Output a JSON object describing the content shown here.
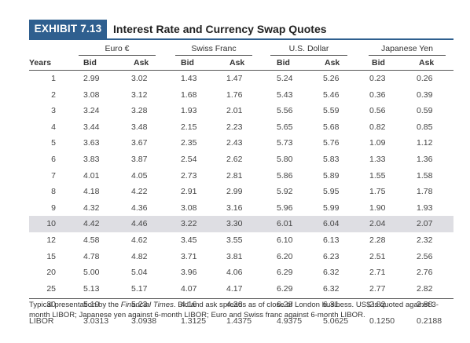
{
  "exhibit": {
    "tag": "EXHIBIT 7.13",
    "title": "Interest Rate and Currency Swap Quotes"
  },
  "groups": [
    "Euro €",
    "Swiss Franc",
    "U.S. Dollar",
    "Japanese Yen"
  ],
  "columns": {
    "years": "Years",
    "bid": "Bid",
    "ask": "Ask"
  },
  "rows": [
    {
      "years": "1",
      "cells": [
        "2.99",
        "3.02",
        "1.43",
        "1.47",
        "5.24",
        "5.26",
        "0.23",
        "0.26"
      ]
    },
    {
      "years": "2",
      "cells": [
        "3.08",
        "3.12",
        "1.68",
        "1.76",
        "5.43",
        "5.46",
        "0.36",
        "0.39"
      ]
    },
    {
      "years": "3",
      "cells": [
        "3.24",
        "3.28",
        "1.93",
        "2.01",
        "5.56",
        "5.59",
        "0.56",
        "0.59"
      ]
    },
    {
      "years": "4",
      "cells": [
        "3.44",
        "3.48",
        "2.15",
        "2.23",
        "5.65",
        "5.68",
        "0.82",
        "0.85"
      ]
    },
    {
      "years": "5",
      "cells": [
        "3.63",
        "3.67",
        "2.35",
        "2.43",
        "5.73",
        "5.76",
        "1.09",
        "1.12"
      ]
    },
    {
      "years": "6",
      "cells": [
        "3.83",
        "3.87",
        "2.54",
        "2.62",
        "5.80",
        "5.83",
        "1.33",
        "1.36"
      ]
    },
    {
      "years": "7",
      "cells": [
        "4.01",
        "4.05",
        "2.73",
        "2.81",
        "5.86",
        "5.89",
        "1.55",
        "1.58"
      ]
    },
    {
      "years": "8",
      "cells": [
        "4.18",
        "4.22",
        "2.91",
        "2.99",
        "5.92",
        "5.95",
        "1.75",
        "1.78"
      ]
    },
    {
      "years": "9",
      "cells": [
        "4.32",
        "4.36",
        "3.08",
        "3.16",
        "5.96",
        "5.99",
        "1.90",
        "1.93"
      ]
    },
    {
      "years": "10",
      "cells": [
        "4.42",
        "4.46",
        "3.22",
        "3.30",
        "6.01",
        "6.04",
        "2.04",
        "2.07"
      ],
      "highlight": true
    },
    {
      "years": "12",
      "cells": [
        "4.58",
        "4.62",
        "3.45",
        "3.55",
        "6.10",
        "6.13",
        "2.28",
        "2.32"
      ]
    },
    {
      "years": "15",
      "cells": [
        "4.78",
        "4.82",
        "3.71",
        "3.81",
        "6.20",
        "6.23",
        "2.51",
        "2.56"
      ]
    },
    {
      "years": "20",
      "cells": [
        "5.00",
        "5.04",
        "3.96",
        "4.06",
        "6.29",
        "6.32",
        "2.71",
        "2.76"
      ]
    },
    {
      "years": "25",
      "cells": [
        "5.13",
        "5.17",
        "4.07",
        "4.17",
        "6.29",
        "6.32",
        "2.77",
        "2.82"
      ]
    },
    {
      "years": "30",
      "cells": [
        "5.19",
        "5.23",
        "4.16",
        "4.26",
        "6.28",
        "6.31",
        "2.82",
        "2.88"
      ]
    },
    {
      "years": "LIBOR",
      "cells": [
        "3.0313",
        "3.0938",
        "1.3125",
        "1.4375",
        "4.9375",
        "5.0625",
        "0.1250",
        "0.2188"
      ]
    }
  ],
  "footnote": {
    "pre": "Typical presentation by the ",
    "source": "Financial Times",
    "post": ". Bid and ask spreads as of close of London business. US$ is quoted against 3-month LIBOR; Japanese yen against 6-month LIBOR; Euro and Swiss franc against 6-month LIBOR."
  },
  "colors": {
    "header_bg": "#2f5f8f",
    "highlight_row": "#dedee3"
  }
}
